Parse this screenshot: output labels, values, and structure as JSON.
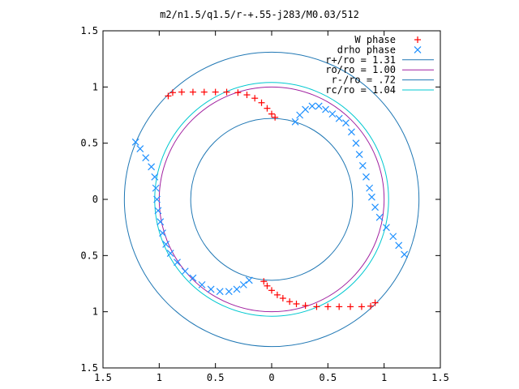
{
  "chart_data": {
    "type": "scatter",
    "title": "m2/n1.5/q1.5/r-+.55-j283/M0.03/512",
    "xlabel": "",
    "ylabel": "",
    "xlim": [
      -1.5,
      1.5
    ],
    "ylim": [
      -1.5,
      1.5
    ],
    "x_ticks": [
      -1.5,
      -1,
      -0.5,
      0,
      0.5,
      1,
      1.5
    ],
    "y_ticks": [
      -1.5,
      -1,
      -0.5,
      0,
      0.5,
      1,
      1.5
    ],
    "x_tick_labels": [
      "1.5",
      "1",
      "0.5",
      "0",
      "0.5",
      "1",
      "1.5"
    ],
    "y_tick_labels": [
      "1.5",
      "1",
      "0.5",
      "0",
      "0.5",
      "1",
      "1.5"
    ],
    "grid": false,
    "legend_position": "top-right",
    "series": [
      {
        "name": "W phase",
        "marker": "+",
        "color": "#ff0000",
        "points": [
          [
            -0.92,
            0.92
          ],
          [
            -0.88,
            0.95
          ],
          [
            -0.8,
            0.955
          ],
          [
            -0.7,
            0.955
          ],
          [
            -0.6,
            0.955
          ],
          [
            -0.5,
            0.955
          ],
          [
            -0.4,
            0.955
          ],
          [
            -0.3,
            0.95
          ],
          [
            -0.22,
            0.93
          ],
          [
            -0.15,
            0.9
          ],
          [
            -0.09,
            0.86
          ],
          [
            -0.04,
            0.81
          ],
          [
            0.0,
            0.76
          ],
          [
            0.03,
            0.73
          ],
          [
            -0.07,
            -0.73
          ],
          [
            -0.04,
            -0.77
          ],
          [
            0.0,
            -0.81
          ],
          [
            0.05,
            -0.85
          ],
          [
            0.1,
            -0.88
          ],
          [
            0.16,
            -0.91
          ],
          [
            0.22,
            -0.93
          ],
          [
            0.3,
            -0.945
          ],
          [
            0.4,
            -0.955
          ],
          [
            0.5,
            -0.955
          ],
          [
            0.6,
            -0.955
          ],
          [
            0.7,
            -0.955
          ],
          [
            0.8,
            -0.955
          ],
          [
            0.88,
            -0.95
          ],
          [
            0.92,
            -0.92
          ]
        ]
      },
      {
        "name": "drho phase",
        "marker": "x",
        "color": "#1e90ff",
        "points": [
          [
            0.21,
            0.69
          ],
          [
            0.25,
            0.75
          ],
          [
            0.3,
            0.8
          ],
          [
            0.36,
            0.83
          ],
          [
            0.42,
            0.83
          ],
          [
            0.48,
            0.8
          ],
          [
            0.54,
            0.76
          ],
          [
            0.6,
            0.72
          ],
          [
            0.66,
            0.68
          ],
          [
            0.71,
            0.6
          ],
          [
            0.75,
            0.5
          ],
          [
            0.78,
            0.4
          ],
          [
            0.81,
            0.3
          ],
          [
            0.84,
            0.2
          ],
          [
            0.87,
            0.1
          ],
          [
            0.89,
            0.02
          ],
          [
            0.92,
            -0.07
          ],
          [
            0.96,
            -0.16
          ],
          [
            1.02,
            -0.25
          ],
          [
            1.08,
            -0.33
          ],
          [
            1.13,
            -0.41
          ],
          [
            1.18,
            -0.49
          ],
          [
            -1.21,
            0.51
          ],
          [
            -1.17,
            0.45
          ],
          [
            -1.12,
            0.37
          ],
          [
            -1.07,
            0.29
          ],
          [
            -1.04,
            0.2
          ],
          [
            -1.03,
            0.1
          ],
          [
            -1.02,
            0.0
          ],
          [
            -1.01,
            -0.1
          ],
          [
            -0.99,
            -0.2
          ],
          [
            -0.97,
            -0.3
          ],
          [
            -0.94,
            -0.4
          ],
          [
            -0.9,
            -0.48
          ],
          [
            -0.84,
            -0.56
          ],
          [
            -0.77,
            -0.64
          ],
          [
            -0.7,
            -0.7
          ],
          [
            -0.62,
            -0.76
          ],
          [
            -0.54,
            -0.8
          ],
          [
            -0.46,
            -0.82
          ],
          [
            -0.38,
            -0.82
          ],
          [
            -0.31,
            -0.8
          ],
          [
            -0.25,
            -0.76
          ],
          [
            -0.2,
            -0.72
          ]
        ]
      },
      {
        "name": "r+/ro = 1.31",
        "type": "circle",
        "radius": 1.31,
        "color": "#1f77b4"
      },
      {
        "name": "ro/ro = 1.00",
        "type": "circle",
        "radius": 1.0,
        "color": "#a020a0"
      },
      {
        "name": "r-/ro = .72",
        "type": "circle",
        "radius": 0.72,
        "color": "#1f77b4"
      },
      {
        "name": "rc/ro = 1.04",
        "type": "circle",
        "radius": 1.04,
        "color": "#00c8d0"
      }
    ]
  }
}
